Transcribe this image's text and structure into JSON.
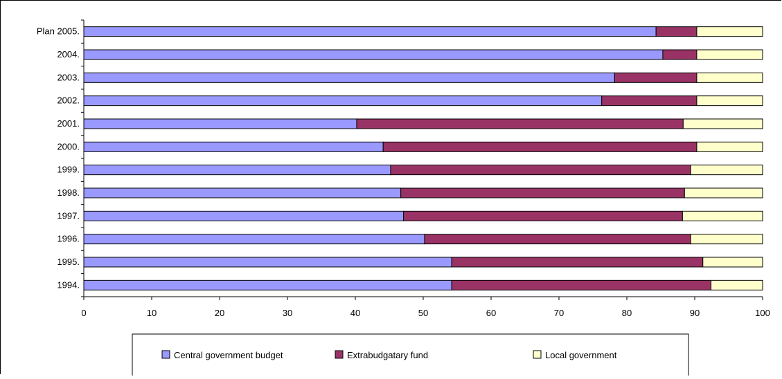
{
  "chart_data": {
    "type": "bar",
    "orientation": "horizontal",
    "stacked": true,
    "categories": [
      "Plan 2005.",
      "2004.",
      "2003.",
      "2002.",
      "2001.",
      "2000.",
      "1999.",
      "1998.",
      "1997.",
      "1996.",
      "1995.",
      "1994."
    ],
    "series": [
      {
        "name": "Central government budget",
        "color": "#9999ff",
        "values": [
          84.3,
          85.3,
          78.2,
          76.3,
          40.2,
          44.1,
          45.2,
          46.7,
          47.1,
          50.2,
          54.2,
          54.2
        ]
      },
      {
        "name": "Extrabudgatary fund",
        "color": "#993366",
        "values": [
          6.0,
          5.0,
          12.1,
          14.0,
          48.1,
          46.2,
          44.2,
          41.8,
          41.1,
          39.2,
          37.0,
          38.2
        ]
      },
      {
        "name": "Local government",
        "color": "#ffffcc",
        "values": [
          9.7,
          9.7,
          9.7,
          9.7,
          11.7,
          9.7,
          10.6,
          11.5,
          11.8,
          10.6,
          8.8,
          7.6
        ]
      }
    ],
    "xlim": [
      0,
      100
    ],
    "xticks": [
      "0",
      "10",
      "20",
      "30",
      "40",
      "50",
      "60",
      "70",
      "80",
      "90",
      "100"
    ],
    "grid": false,
    "legend_position": "bottom",
    "title": "",
    "xlabel": "",
    "ylabel": ""
  }
}
